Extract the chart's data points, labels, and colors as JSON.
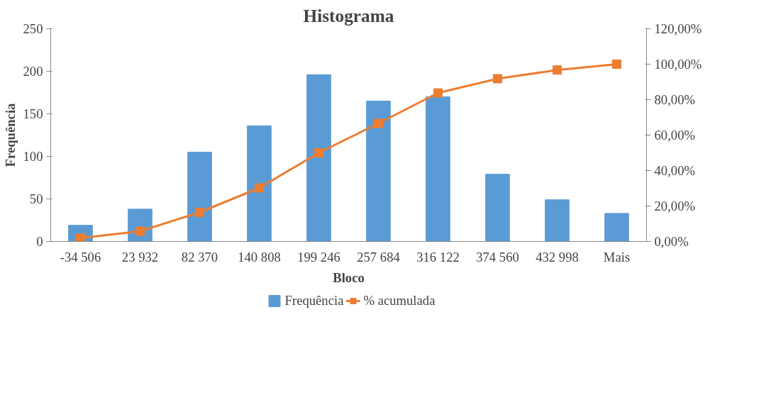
{
  "chart_data": {
    "type": "bar",
    "title": "Histograma",
    "xlabel": "Bloco",
    "ylabel": "Frequência",
    "categories": [
      "-34 506",
      "23 932",
      "82 370",
      "140 808",
      "199 246",
      "257 684",
      "316 122",
      "374 560",
      "432 998",
      "Mais"
    ],
    "series": [
      {
        "name": "Frequência",
        "color": "#5b9bd5",
        "values": [
          19,
          38,
          105,
          136,
          196,
          165,
          170,
          79,
          49,
          33
        ]
      },
      {
        "name": "% acumulada",
        "type": "line",
        "axis": "y2",
        "color": "#ed7d31",
        "marker": "square",
        "values": [
          1.9,
          5.8,
          16.4,
          30.2,
          50.0,
          66.6,
          83.8,
          91.8,
          96.7,
          100.0
        ]
      }
    ],
    "ylim": [
      0,
      250
    ],
    "yticks": [
      0,
      50,
      100,
      150,
      200,
      250
    ],
    "y2lim": [
      0,
      120
    ],
    "y2ticks": [
      {
        "value": 0,
        "label": "0,00%"
      },
      {
        "value": 20,
        "label": "20,00%"
      },
      {
        "value": 40,
        "label": "40,00%"
      },
      {
        "value": 60,
        "label": "60,00%"
      },
      {
        "value": 80,
        "label": "80,00%"
      },
      {
        "value": 100,
        "label": "100,00%"
      },
      {
        "value": 120,
        "label": "120,00%"
      }
    ],
    "grid": false,
    "legend": "bottom"
  }
}
